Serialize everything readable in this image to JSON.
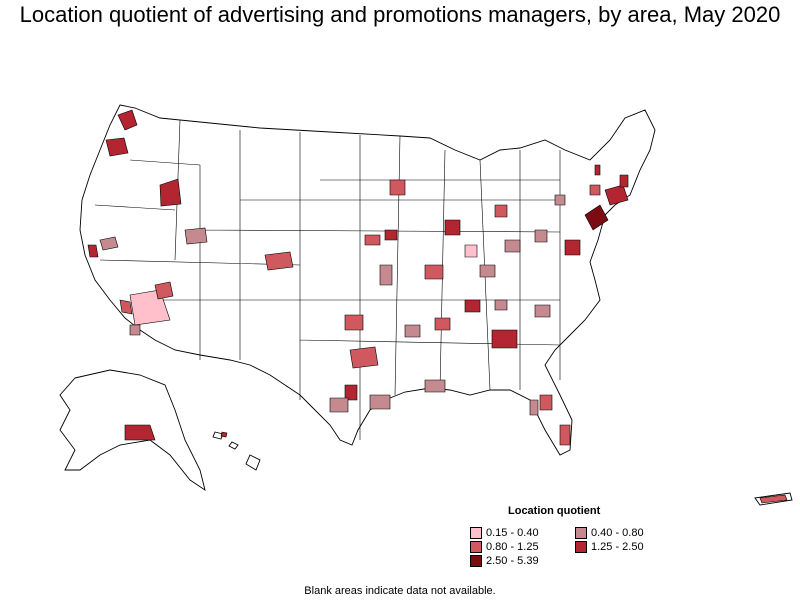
{
  "title": "Location quotient of advertising and promotions managers, by area, May 2020",
  "legend": {
    "title": "Location quotient",
    "items": [
      {
        "label": "0.15 - 0.40",
        "color": "#ffc0cb"
      },
      {
        "label": "0.40 - 0.80",
        "color": "#c48a8f"
      },
      {
        "label": "0.80 - 1.25",
        "color": "#d0585f"
      },
      {
        "label": "1.25 - 2.50",
        "color": "#b32530"
      },
      {
        "label": "2.50 - 5.39",
        "color": "#7a0c12"
      }
    ]
  },
  "note": "Blank areas indicate data not available.",
  "colors": {
    "border": "#000000",
    "blank": "#ffffff"
  }
}
